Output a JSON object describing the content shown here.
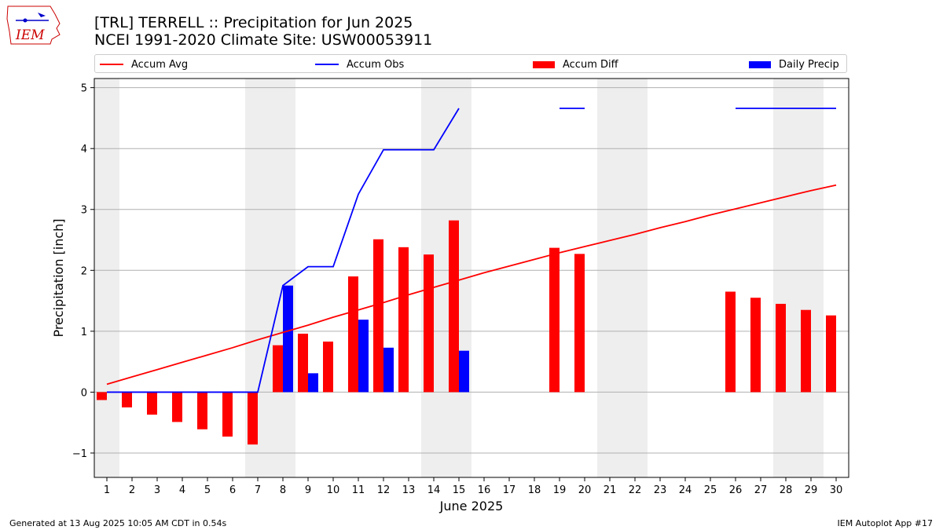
{
  "logo": {
    "text": "IEM",
    "name": "iem-logo"
  },
  "title": {
    "line1": "[TRL] TERRELL :: Precipitation for Jun 2025",
    "line2": "NCEI 1991-2020 Climate Site: USW00053911"
  },
  "legend": [
    {
      "label": "Accum Avg",
      "kind": "line",
      "color": "#ff0000"
    },
    {
      "label": "Accum Obs",
      "kind": "line",
      "color": "#0000ff"
    },
    {
      "label": "Accum Diff",
      "kind": "box",
      "color": "#ff0000"
    },
    {
      "label": "Daily Precip",
      "kind": "box",
      "color": "#0000ff"
    }
  ],
  "footer": {
    "left": "Generated at 13 Aug 2025 10:05 AM CDT in 0.54s",
    "right": "IEM Autoplot App #17"
  },
  "chart_data": {
    "type": "bar",
    "xlabel": "June 2025",
    "ylabel": "Precipitation [inch]",
    "ylim": [
      -1.4,
      5.15
    ],
    "yticks": [
      -1,
      0,
      1,
      2,
      3,
      4,
      5
    ],
    "ytick_labels": [
      "−1",
      "0",
      "1",
      "2",
      "3",
      "4",
      "5"
    ],
    "grid": true,
    "legend_position": "top",
    "days": [
      1,
      2,
      3,
      4,
      5,
      6,
      7,
      8,
      9,
      10,
      11,
      12,
      13,
      14,
      15,
      16,
      17,
      18,
      19,
      20,
      21,
      22,
      23,
      24,
      25,
      26,
      27,
      28,
      29,
      30
    ],
    "weekend_shading": [
      [
        1,
        1
      ],
      [
        7,
        8
      ],
      [
        14,
        15
      ],
      [
        21,
        22
      ],
      [
        28,
        29
      ]
    ],
    "series": [
      {
        "name": "Accum Avg",
        "kind": "line",
        "color": "#ff0000",
        "values": [
          0.13,
          0.25,
          0.37,
          0.49,
          0.61,
          0.73,
          0.86,
          0.98,
          1.1,
          1.23,
          1.35,
          1.47,
          1.6,
          1.72,
          1.84,
          1.96,
          2.07,
          2.18,
          2.29,
          2.39,
          2.49,
          2.59,
          2.7,
          2.8,
          2.91,
          3.01,
          3.11,
          3.21,
          3.31,
          3.4
        ]
      },
      {
        "name": "Accum Obs",
        "kind": "line",
        "color": "#0000ff",
        "values": [
          0,
          0,
          0,
          0,
          0,
          0,
          0,
          1.75,
          2.06,
          2.06,
          3.25,
          3.98,
          3.98,
          3.98,
          4.66,
          null,
          null,
          null,
          4.66,
          4.66,
          null,
          null,
          null,
          null,
          null,
          4.66,
          4.66,
          4.66,
          4.66,
          4.66
        ]
      },
      {
        "name": "Accum Diff",
        "kind": "bar",
        "color": "#ff0000",
        "values": [
          -0.13,
          -0.25,
          -0.37,
          -0.49,
          -0.61,
          -0.73,
          -0.86,
          0.77,
          0.96,
          0.83,
          1.9,
          2.51,
          2.38,
          2.26,
          2.82,
          null,
          null,
          null,
          2.37,
          2.27,
          null,
          null,
          null,
          null,
          null,
          1.65,
          1.55,
          1.45,
          1.35,
          1.26
        ]
      },
      {
        "name": "Daily Precip",
        "kind": "bar",
        "color": "#0000ff",
        "values": [
          0,
          0,
          0,
          0,
          0,
          0,
          0,
          1.75,
          0.31,
          0,
          1.19,
          0.73,
          0,
          0,
          0.68,
          null,
          null,
          null,
          0,
          0,
          null,
          null,
          null,
          null,
          null,
          0,
          0,
          0,
          0,
          0
        ]
      }
    ]
  }
}
